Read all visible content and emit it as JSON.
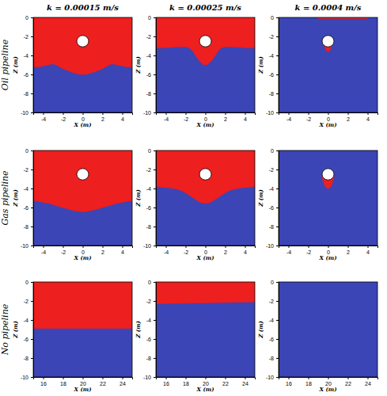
{
  "figure": {
    "column_titles": [
      "k = 0.00015 m/s",
      "k = 0.00025 m/s",
      "k = 0.0004 m/s"
    ],
    "row_labels": [
      "Oil pipeline",
      "Gas pipeline",
      "No pipeline"
    ]
  },
  "chart_data": [
    {
      "type": "area",
      "color": "#3b45b5",
      "xlim": [
        -5,
        5
      ],
      "ylim": [
        -10,
        0
      ],
      "xticks": [
        -4,
        -2,
        0,
        2,
        4
      ],
      "yticks": [
        0,
        -2,
        -4,
        -6,
        -8,
        -10
      ],
      "x_label": "X (m)",
      "y_label": "Z (m)",
      "series": [
        {
          "color": "#ee1f1f",
          "x": [
            -5,
            -4.5,
            -4,
            -3.5,
            -3,
            -2.5,
            -2,
            -1.5,
            -1,
            -0.5,
            0,
            0.5,
            1,
            1.5,
            2,
            2.5,
            3,
            3.5,
            4,
            4.5,
            5
          ],
          "values": [
            -5.2,
            -5.2,
            -5.1,
            -5.0,
            -4.9,
            -5.1,
            -5.4,
            -5.6,
            -5.8,
            -5.95,
            -6.0,
            -5.95,
            -5.8,
            -5.6,
            -5.4,
            -5.1,
            -4.9,
            -5.0,
            -5.1,
            -5.2,
            -5.2
          ],
          "upper": [
            0,
            0,
            0,
            0,
            0,
            0,
            0,
            0,
            0,
            0,
            0,
            0,
            0,
            0,
            0,
            0,
            0,
            0,
            0,
            0,
            0
          ]
        }
      ],
      "pipeline": {
        "x": 0,
        "z": -2.5,
        "radius": 0.6
      }
    },
    {
      "type": "area",
      "color": "#3b45b5",
      "xlim": [
        -5,
        5
      ],
      "ylim": [
        -10,
        0
      ],
      "xticks": [
        -4,
        -2,
        0,
        2,
        4
      ],
      "yticks": [
        0,
        -2,
        -4,
        -6,
        -8,
        -10
      ],
      "x_label": "X (m)",
      "y_label": "Z (m)",
      "series": [
        {
          "color": "#ee1f1f",
          "x": [
            -5,
            -4.5,
            -4,
            -3.5,
            -3,
            -2.5,
            -2,
            -1.5,
            -1,
            -0.5,
            0,
            0.5,
            1,
            1.5,
            2,
            2.5,
            3,
            3.5,
            4,
            4.5,
            5
          ],
          "values": [
            -3.2,
            -3.2,
            -3.2,
            -3.15,
            -3.1,
            -3.1,
            -3.1,
            -3.3,
            -4.0,
            -4.7,
            -5.0,
            -4.7,
            -4.0,
            -3.3,
            -3.1,
            -3.1,
            -3.1,
            -3.15,
            -3.2,
            -3.2,
            -3.2
          ],
          "upper": [
            0,
            0,
            0,
            0,
            0,
            0,
            0,
            0,
            0,
            0,
            0,
            0,
            0,
            0,
            0,
            0,
            0,
            0,
            0,
            0,
            0
          ]
        }
      ],
      "pipeline": {
        "x": 0,
        "z": -2.5,
        "radius": 0.6
      }
    },
    {
      "type": "area",
      "color": "#3b45b5",
      "xlim": [
        -5,
        5
      ],
      "ylim": [
        -10,
        0
      ],
      "xticks": [
        -4,
        -2,
        0,
        2,
        4
      ],
      "yticks": [
        0,
        -2,
        -4,
        -6,
        -8,
        -10
      ],
      "x_label": "X (m)",
      "y_label": "Z (m)",
      "series": [
        {
          "color": "#ee1f1f",
          "x": [
            -1,
            4
          ],
          "values": [
            -0.12,
            -0.12
          ],
          "upper": [
            0,
            0
          ]
        },
        {
          "color": "#ee1f1f",
          "x": [
            -0.45,
            -0.3,
            -0.15,
            0,
            0.15,
            0.3,
            0.45
          ],
          "values": [
            -2.7,
            -3.2,
            -3.5,
            -3.6,
            -3.5,
            -3.2,
            -2.7
          ],
          "upper": [
            -2.5,
            -2.5,
            -2.5,
            -2.5,
            -2.5,
            -2.5,
            -2.5
          ]
        }
      ],
      "pipeline": {
        "x": 0,
        "z": -2.5,
        "radius": 0.6
      }
    },
    {
      "type": "area",
      "color": "#3b45b5",
      "xlim": [
        -5,
        5
      ],
      "ylim": [
        -10,
        0
      ],
      "xticks": [
        -4,
        -2,
        0,
        2,
        4
      ],
      "yticks": [
        0,
        -2,
        -4,
        -6,
        -8,
        -10
      ],
      "x_label": "X (m)",
      "y_label": "Z (m)",
      "series": [
        {
          "color": "#ee1f1f",
          "x": [
            -5,
            -4.5,
            -4,
            -3.5,
            -3,
            -2.5,
            -2,
            -1.5,
            -1,
            -0.5,
            0,
            0.5,
            1,
            1.5,
            2,
            2.5,
            3,
            3.5,
            4,
            4.5,
            5
          ],
          "values": [
            -5.3,
            -5.35,
            -5.45,
            -5.55,
            -5.7,
            -5.85,
            -6.0,
            -6.15,
            -6.3,
            -6.4,
            -6.45,
            -6.4,
            -6.3,
            -6.15,
            -6.0,
            -5.85,
            -5.7,
            -5.55,
            -5.45,
            -5.35,
            -5.3
          ],
          "upper": [
            0,
            0,
            0,
            0,
            0,
            0,
            0,
            0,
            0,
            0,
            0,
            0,
            0,
            0,
            0,
            0,
            0,
            0,
            0,
            0,
            0
          ]
        }
      ],
      "pipeline": {
        "x": 0,
        "z": -2.5,
        "radius": 0.6
      }
    },
    {
      "type": "area",
      "color": "#3b45b5",
      "xlim": [
        -5,
        5
      ],
      "ylim": [
        -10,
        0
      ],
      "xticks": [
        -4,
        -2,
        0,
        2,
        4
      ],
      "yticks": [
        0,
        -2,
        -4,
        -6,
        -8,
        -10
      ],
      "x_label": "X (m)",
      "y_label": "Z (m)",
      "series": [
        {
          "color": "#ee1f1f",
          "x": [
            -5,
            -4.5,
            -4,
            -3.5,
            -3,
            -2.5,
            -2,
            -1.5,
            -1,
            -0.5,
            0,
            0.5,
            1,
            1.5,
            2,
            2.5,
            3,
            3.5,
            4,
            4.5,
            5
          ],
          "values": [
            -3.8,
            -3.85,
            -3.9,
            -3.95,
            -4.05,
            -4.2,
            -4.45,
            -4.8,
            -5.15,
            -5.45,
            -5.55,
            -5.45,
            -5.15,
            -4.8,
            -4.45,
            -4.2,
            -4.05,
            -3.95,
            -3.9,
            -3.85,
            -3.8
          ],
          "upper": [
            0,
            0,
            0,
            0,
            0,
            0,
            0,
            0,
            0,
            0,
            0,
            0,
            0,
            0,
            0,
            0,
            0,
            0,
            0,
            0,
            0
          ]
        }
      ],
      "pipeline": {
        "x": 0,
        "z": -2.5,
        "radius": 0.6
      }
    },
    {
      "type": "area",
      "color": "#3b45b5",
      "xlim": [
        -5,
        5
      ],
      "ylim": [
        -10,
        0
      ],
      "xticks": [
        -4,
        -2,
        0,
        2,
        4
      ],
      "yticks": [
        0,
        -2,
        -4,
        -6,
        -8,
        -10
      ],
      "x_label": "X (m)",
      "y_label": "Z (m)",
      "series": [
        {
          "color": "#ee1f1f",
          "x": [
            -0.6,
            -0.4,
            -0.2,
            0,
            0.2,
            0.4,
            0.6
          ],
          "values": [
            -2.8,
            -3.5,
            -3.9,
            -4.0,
            -3.9,
            -3.5,
            -2.8
          ],
          "upper": [
            -2.5,
            -2.5,
            -2.5,
            -2.5,
            -2.5,
            -2.5,
            -2.5
          ]
        }
      ],
      "pipeline": {
        "x": 0,
        "z": -2.5,
        "radius": 0.6
      }
    },
    {
      "type": "area",
      "color": "#3b45b5",
      "xlim": [
        15,
        25
      ],
      "ylim": [
        -10,
        0
      ],
      "xticks": [
        16,
        18,
        20,
        22,
        24
      ],
      "yticks": [
        0,
        -2,
        -4,
        -6,
        -8,
        -10
      ],
      "x_label": "X (m)",
      "y_label": "Z (m)",
      "series": [
        {
          "color": "#ee1f1f",
          "x": [
            15,
            25
          ],
          "values": [
            -4.9,
            -4.9
          ],
          "upper": [
            0,
            0
          ]
        }
      ]
    },
    {
      "type": "area",
      "color": "#3b45b5",
      "xlim": [
        15,
        25
      ],
      "ylim": [
        -10,
        0
      ],
      "xticks": [
        16,
        18,
        20,
        22,
        24
      ],
      "yticks": [
        0,
        -2,
        -4,
        -6,
        -8,
        -10
      ],
      "x_label": "X (m)",
      "y_label": "Z (m)",
      "series": [
        {
          "color": "#ee1f1f",
          "x": [
            15,
            25
          ],
          "values": [
            -2.3,
            -2.1
          ],
          "upper": [
            0,
            0
          ]
        }
      ]
    },
    {
      "type": "area",
      "color": "#3b45b5",
      "xlim": [
        15,
        25
      ],
      "ylim": [
        -10,
        0
      ],
      "xticks": [
        16,
        18,
        20,
        22,
        24
      ],
      "yticks": [
        0,
        -2,
        -4,
        -6,
        -8,
        -10
      ],
      "x_label": "X (m)",
      "y_label": "Z (m)",
      "series": []
    }
  ]
}
